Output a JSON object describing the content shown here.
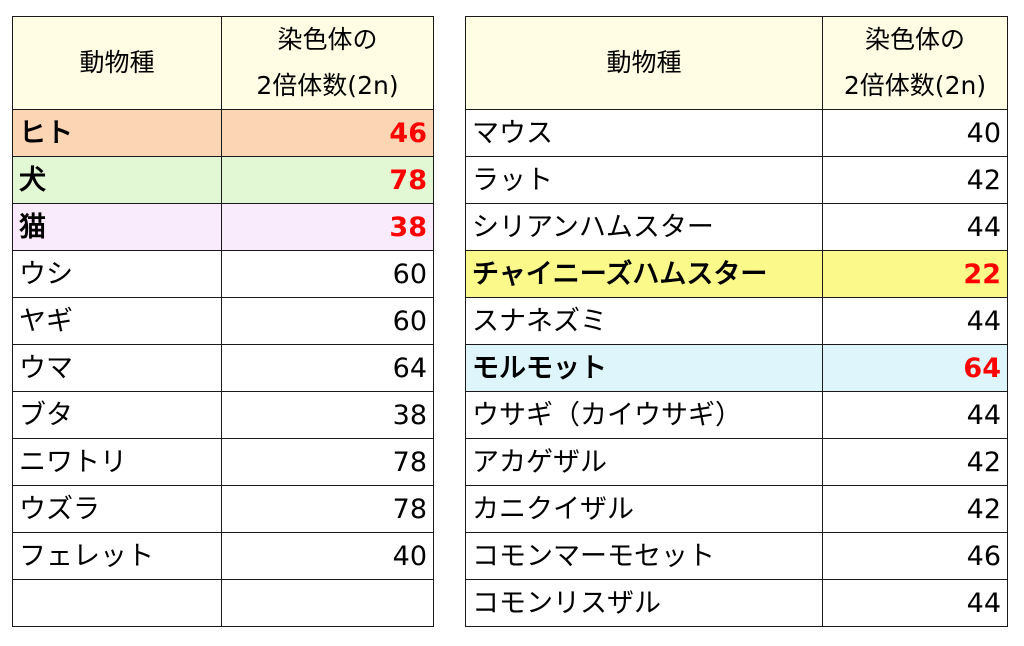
{
  "headers": {
    "species": "動物種",
    "chromosome_line1": "染色体の",
    "chromosome_line2": "2倍体数(2n)"
  },
  "left_table": [
    {
      "name": "ヒト",
      "value": "46",
      "highlight": true,
      "bg": "#fcd5b4"
    },
    {
      "name": "犬",
      "value": "78",
      "highlight": true,
      "bg": "#e2f7d4"
    },
    {
      "name": "猫",
      "value": "38",
      "highlight": true,
      "bg": "#faebfc"
    },
    {
      "name": "ウシ",
      "value": "60"
    },
    {
      "name": "ヤギ",
      "value": "60"
    },
    {
      "name": "ウマ",
      "value": "64"
    },
    {
      "name": "ブタ",
      "value": "38"
    },
    {
      "name": "ニワトリ",
      "value": "78"
    },
    {
      "name": "ウズラ",
      "value": "78"
    },
    {
      "name": "フェレット",
      "value": "40"
    },
    {
      "name": "",
      "value": ""
    }
  ],
  "right_table": [
    {
      "name": "マウス",
      "value": "40"
    },
    {
      "name": "ラット",
      "value": "42"
    },
    {
      "name": "シリアンハムスター",
      "value": "44"
    },
    {
      "name": "チャイニーズハムスター",
      "value": "22",
      "highlight": true,
      "bg": "#fbf98a"
    },
    {
      "name": "スナネズミ",
      "value": "44"
    },
    {
      "name": "モルモット",
      "value": "64",
      "highlight": true,
      "bg": "#def5fc"
    },
    {
      "name": "ウサギ（カイウサギ）",
      "value": "44"
    },
    {
      "name": "アカゲザル",
      "value": "42"
    },
    {
      "name": "カニクイザル",
      "value": "42"
    },
    {
      "name": "コモンマーモセット",
      "value": "46"
    },
    {
      "name": "コモンリスザル",
      "value": "44"
    }
  ]
}
